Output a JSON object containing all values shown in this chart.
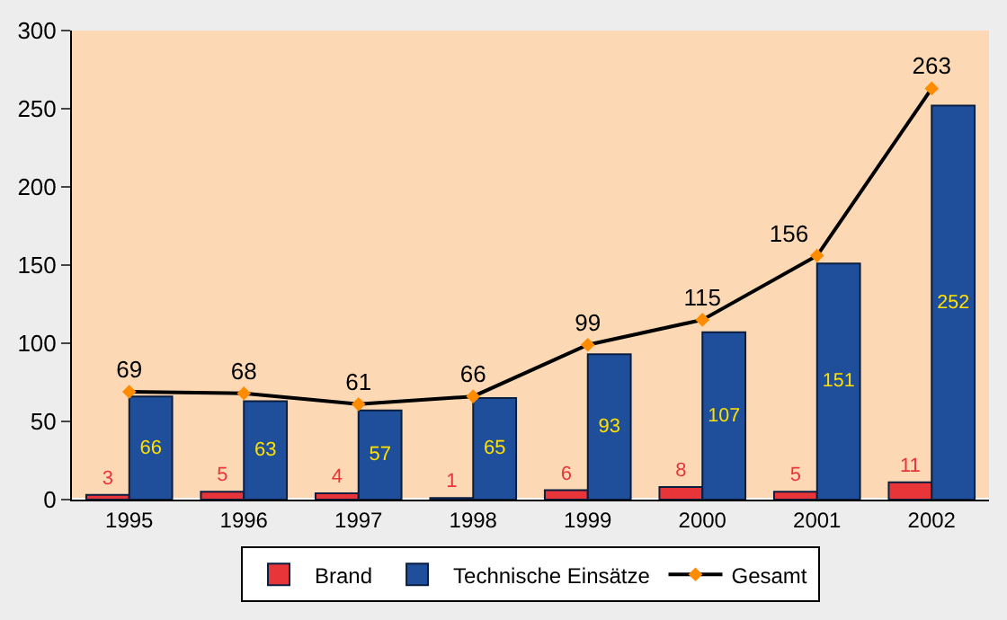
{
  "chart_data": {
    "type": "bar",
    "categories": [
      "1995",
      "1996",
      "1997",
      "1998",
      "1999",
      "2000",
      "2001",
      "2002"
    ],
    "series": [
      {
        "name": "Brand",
        "color": "#e8353a",
        "values": [
          3,
          5,
          4,
          1,
          6,
          8,
          5,
          11
        ]
      },
      {
        "name": "Technische Einsätze",
        "color": "#1f4e9a",
        "values": [
          66,
          63,
          57,
          65,
          93,
          107,
          151,
          252
        ]
      },
      {
        "name": "Gesamt",
        "type": "line",
        "color": "#000000",
        "marker": "diamond",
        "values": [
          69,
          68,
          61,
          66,
          99,
          115,
          156,
          263
        ]
      }
    ],
    "ylim": [
      0,
      300
    ],
    "yticks": [
      0,
      50,
      100,
      150,
      200,
      250,
      300
    ],
    "grid": false,
    "legend": "bottom",
    "data_labels": true
  }
}
